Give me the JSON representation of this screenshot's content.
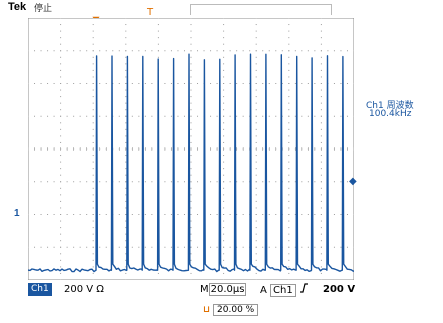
{
  "header": {
    "brand": "Tek",
    "run_status": "停止"
  },
  "measurement": {
    "label": "Ch1 周波数",
    "value": "100.4kHz"
  },
  "channel_marker": "1",
  "status_bar": {
    "channel": "Ch1",
    "vertical_scale": "200 V Ω",
    "time_prefix": "M",
    "time_scale": "20.0µs",
    "trigger_prefix": "A",
    "trigger_channel": "Ch1",
    "trigger_level": "200 V"
  },
  "trigger_position": "20.00 %",
  "colors": {
    "trace": "#1a56a0",
    "grid": "#9e9e9e",
    "trigger_marker": "#e07000"
  },
  "waveform": {
    "pulse_count": 17,
    "pulse_height_divisions": 6.6,
    "baseline_division": 7.7
  }
}
